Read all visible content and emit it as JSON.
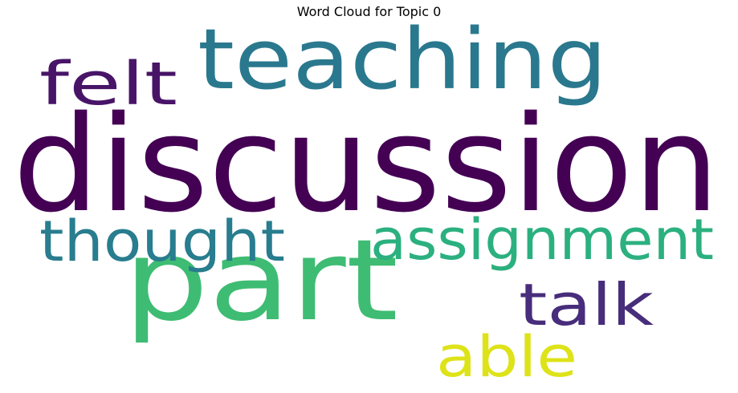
{
  "figure": {
    "title": "Word Cloud for Topic 0"
  },
  "words": [
    {
      "id": "discussion",
      "text": "discussion",
      "color": "#440154"
    },
    {
      "id": "part",
      "text": "part",
      "color": "#3ebc73"
    },
    {
      "id": "teaching",
      "text": "teaching",
      "color": "#2a788e"
    },
    {
      "id": "assignment",
      "text": "assignment",
      "color": "#2bb07f"
    },
    {
      "id": "thought",
      "text": "thought",
      "color": "#287d8e"
    },
    {
      "id": "felt",
      "text": "felt",
      "color": "#481467"
    },
    {
      "id": "talk",
      "text": "talk",
      "color": "#472d7b"
    },
    {
      "id": "able",
      "text": "able",
      "color": "#dde318"
    }
  ]
}
